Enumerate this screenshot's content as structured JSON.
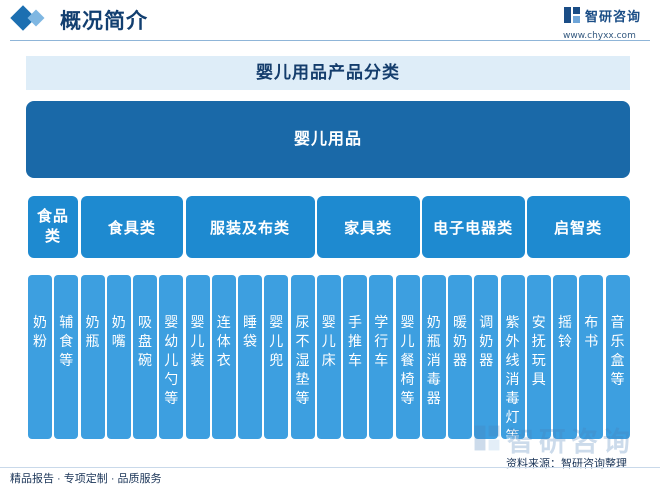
{
  "header": {
    "title": "概况简介"
  },
  "logo": {
    "name": "智研咨询",
    "url": "www.chyxx.com"
  },
  "diagram": {
    "title": "婴儿用品产品分类",
    "root": "婴儿用品",
    "categories": [
      {
        "label": "食品类",
        "items": [
          "奶粉",
          "辅食等"
        ]
      },
      {
        "label": "食具类",
        "items": [
          "奶瓶",
          "奶嘴",
          "吸盘碗",
          "婴幼儿勺等"
        ]
      },
      {
        "label": "服装及布类",
        "items": [
          "婴儿装",
          "连体衣",
          "睡袋",
          "婴儿兜",
          "尿不湿垫等"
        ]
      },
      {
        "label": "家具类",
        "items": [
          "婴儿床",
          "手推车",
          "学行车",
          "婴儿餐椅等"
        ]
      },
      {
        "label": "电子电器类",
        "items": [
          "奶瓶消毒器",
          "暖奶器",
          "调奶器",
          "紫外线消毒灯等"
        ]
      },
      {
        "label": "启智类",
        "items": [
          "安抚玩具",
          "摇铃",
          "布书",
          "音乐盒等"
        ]
      }
    ]
  },
  "watermark": {
    "name": "智研咨询"
  },
  "footer": {
    "tagline": "精品报告 · 专项定制 · 品质服务",
    "source": "资料来源：智研咨询整理"
  },
  "colors": {
    "root": "#1a69a8",
    "category": "#1e8ad0",
    "item": "#3d9fe0",
    "title_bar": "#deedf8"
  }
}
